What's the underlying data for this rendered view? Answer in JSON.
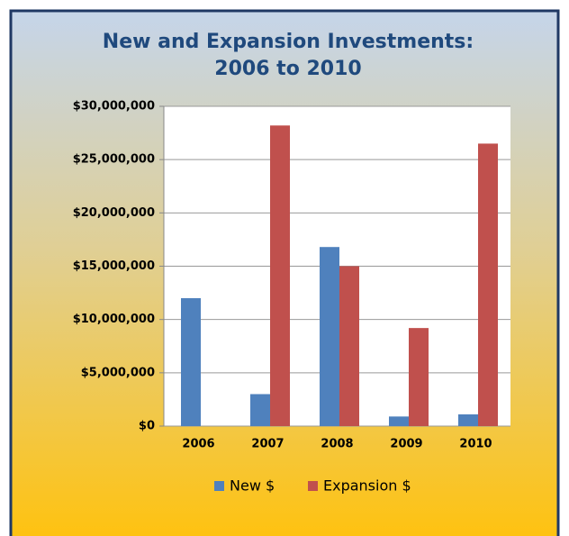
{
  "chart_data": {
    "type": "bar",
    "title": [
      "New and Expansion Investments:",
      "2006 to 2010"
    ],
    "categories": [
      "2006",
      "2007",
      "2008",
      "2009",
      "2010"
    ],
    "series": [
      {
        "name": "New $",
        "color": "#4f81bd",
        "values": [
          12000000,
          3000000,
          16800000,
          900000,
          1100000
        ]
      },
      {
        "name": "Expansion $",
        "color": "#c0504d",
        "values": [
          0,
          28200000,
          15000000,
          9200000,
          26500000
        ]
      }
    ],
    "ylim": [
      0,
      30000000
    ],
    "yticks": [
      {
        "value": 0,
        "label": "$0"
      },
      {
        "value": 5000000,
        "label": "$5,000,000"
      },
      {
        "value": 10000000,
        "label": "$10,000,000"
      },
      {
        "value": 15000000,
        "label": "$15,000,000"
      },
      {
        "value": 20000000,
        "label": "$20,000,000"
      },
      {
        "value": 25000000,
        "label": "$25,000,000"
      },
      {
        "value": 30000000,
        "label": "$30,000,000"
      }
    ],
    "grid": true,
    "legend": "bottom"
  }
}
